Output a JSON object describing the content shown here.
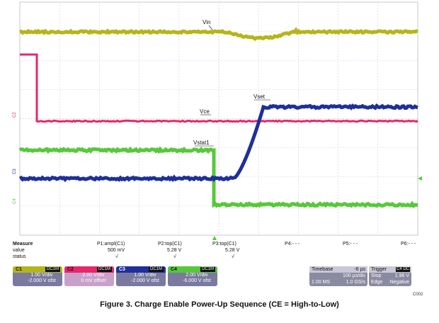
{
  "traces": {
    "vin_label": "Vin",
    "vce_label": "Vce",
    "vstat1_label": "Vstat1",
    "vset_label": "Vset",
    "colors": {
      "c1": "#b5b519",
      "c2": "#e8266d",
      "c3": "#1f2f9a",
      "c4": "#57c83a"
    },
    "left_markers": [
      "C2",
      "C3",
      "C4"
    ]
  },
  "measure": {
    "header": "Measure",
    "rows": [
      {
        "name": "value",
        "p1": "500 mV",
        "p2": "5.28 V",
        "p3": "5.28 V"
      },
      {
        "name": "status",
        "p1": "√",
        "p2": "√",
        "p3": "√"
      }
    ],
    "params": [
      "P1:ampl(C1)",
      "P2:top(C1)",
      "P3:top(C1)",
      "P4:- - -",
      "P5:- - -",
      "P6:- - -"
    ]
  },
  "channels": [
    {
      "name": "C1",
      "tag": "DC1M",
      "vdiv": "1.00 V/div",
      "offset": "-2.000 V ofst",
      "color": "#b5b519",
      "body": "#7a7aa0"
    },
    {
      "name": "C2",
      "tag": "DC1M",
      "vdiv": "2.00 V/div",
      "offset": "0 mV offset",
      "color": "#e8266d",
      "body": "#c9a0c9"
    },
    {
      "name": "C3",
      "tag": "DC1M",
      "vdiv": "1.00 V/div",
      "offset": "-2.000 V ofst",
      "color": "#1f2f9a",
      "body": "#7a7aa0"
    },
    {
      "name": "C4",
      "tag": "DC1M",
      "vdiv": "2.00 V/div",
      "offset": "-6.000 V ofst",
      "color": "#57c83a",
      "body": "#7a7aa0"
    }
  ],
  "timebase": {
    "label": "Timebase",
    "delay": "-6 µs",
    "tdiv": "100 µs/div",
    "samples": "1.00 MS",
    "rate": "1.0 GS/s"
  },
  "trigger": {
    "label": "Trigger",
    "tag": "C4 DC",
    "mode": "Stop",
    "level": "1.96 V",
    "type": "Edge",
    "slope": "Negative"
  },
  "page_id": "C002",
  "caption": "Figure 3. Charge Enable Power-Up Sequence (CE = High-to-Low)"
}
